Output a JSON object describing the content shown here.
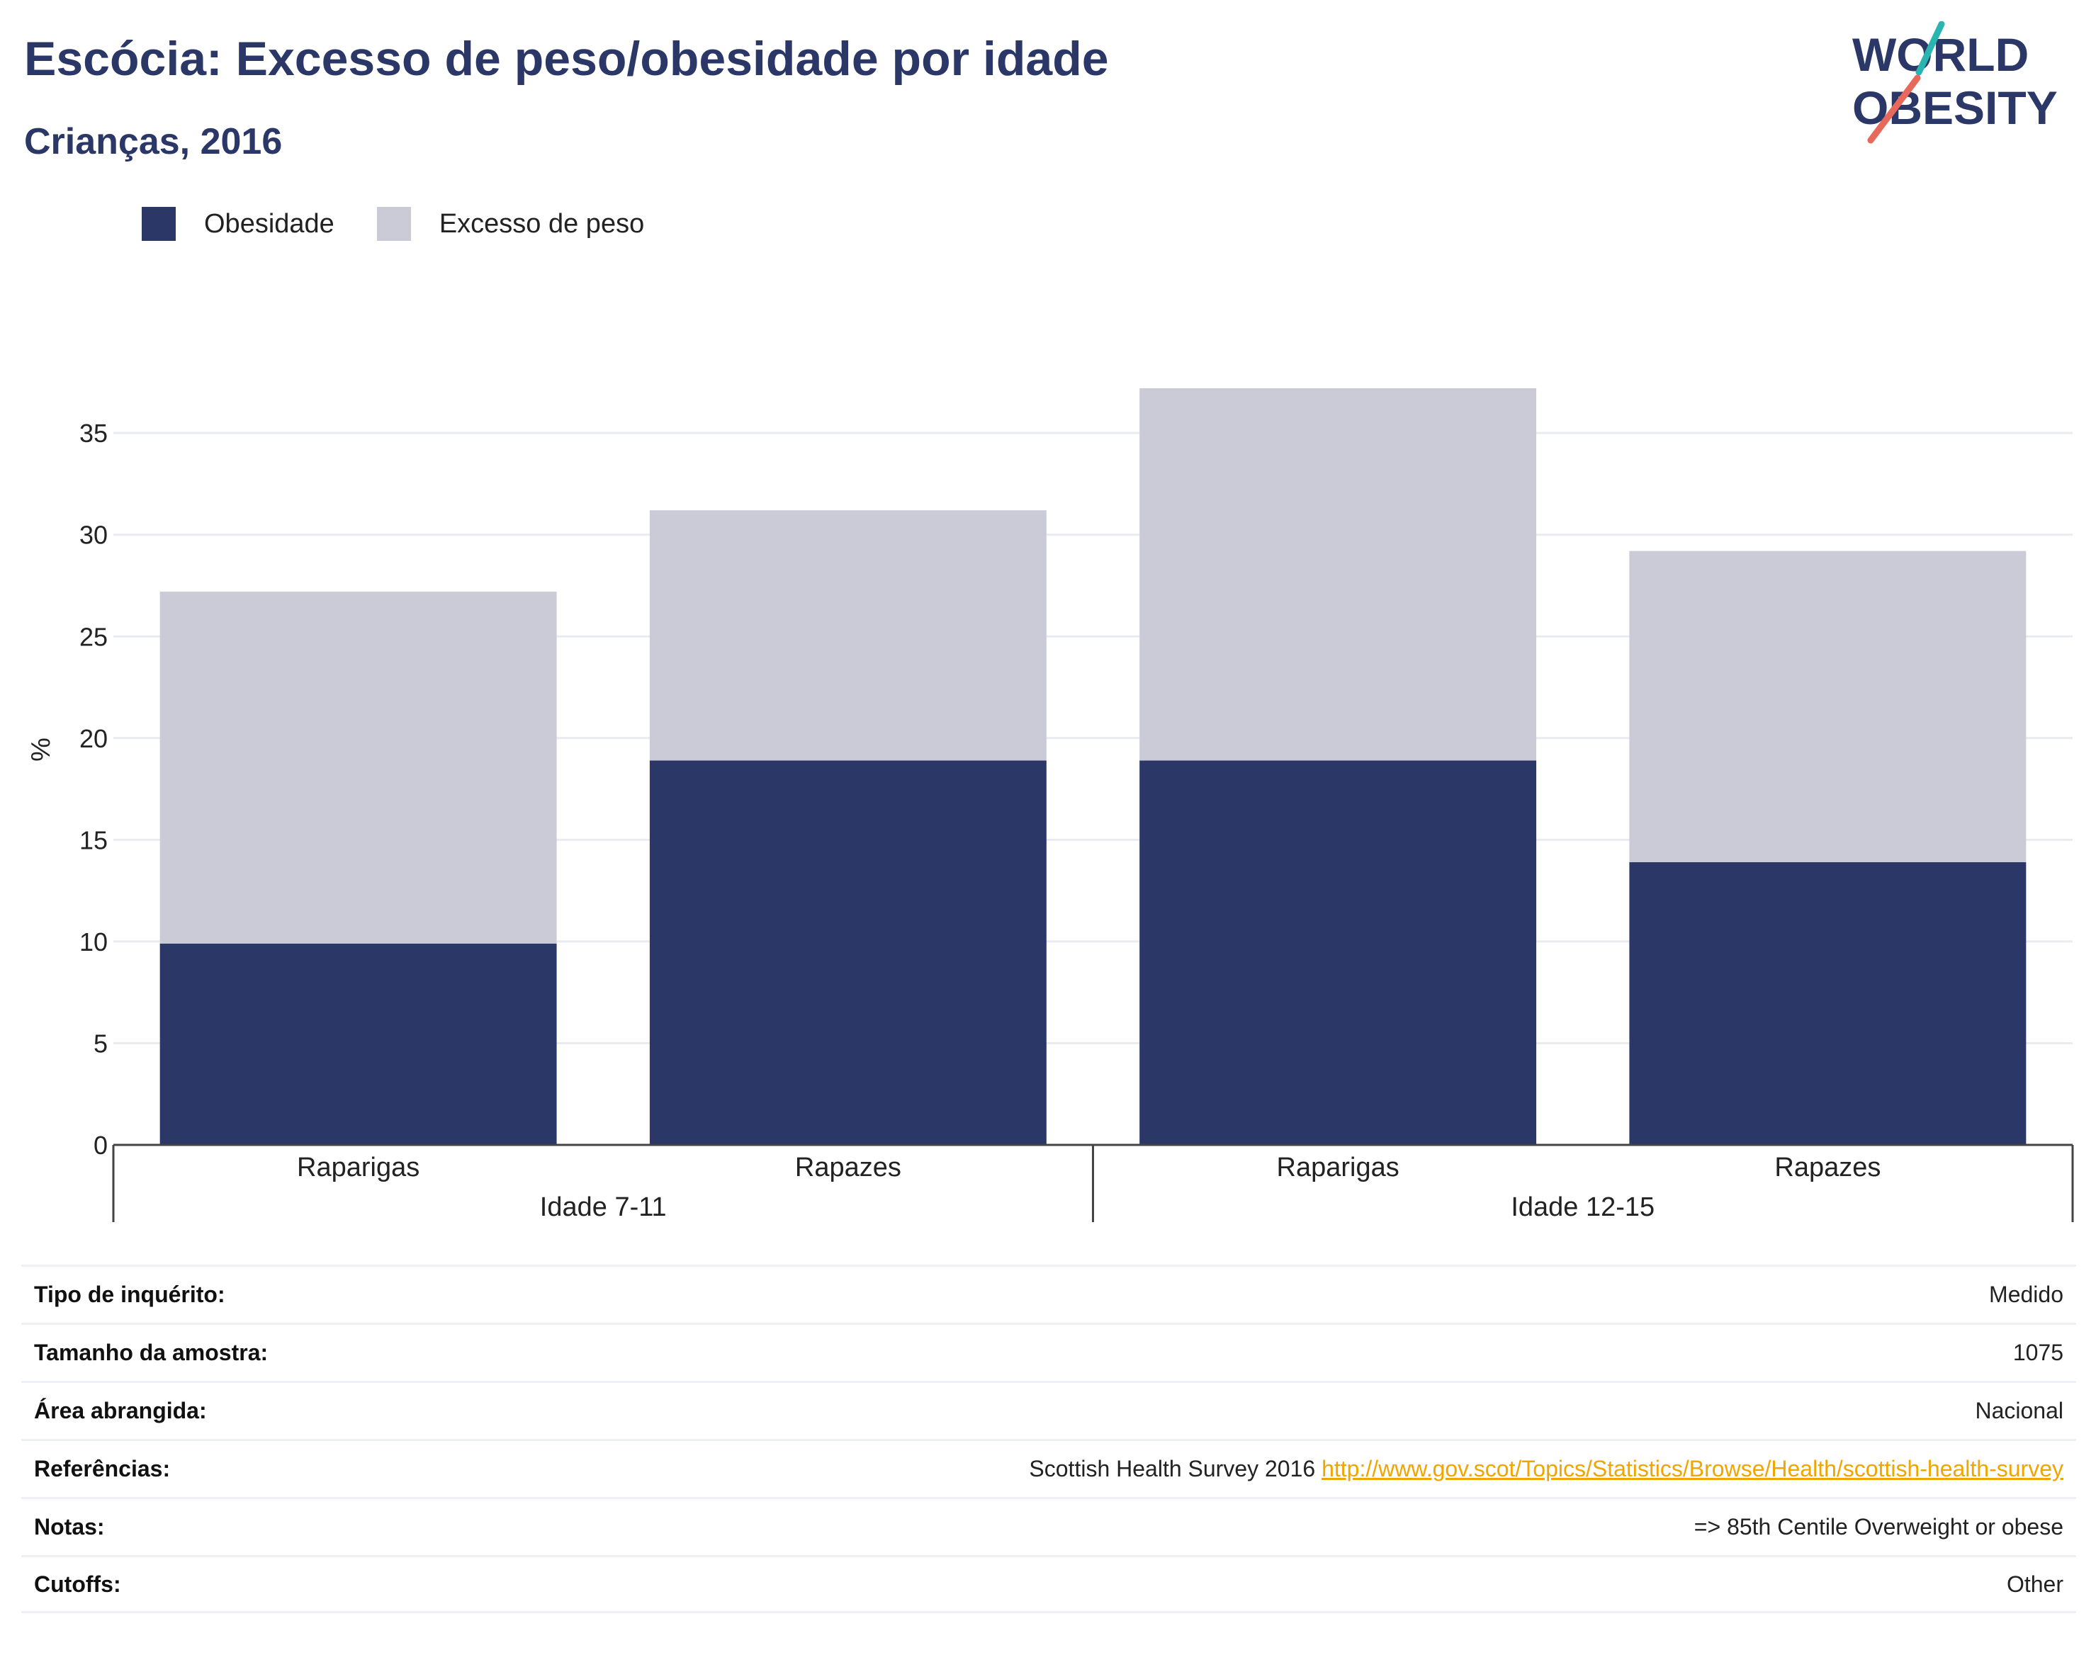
{
  "header": {
    "title": "Escócia: Excesso de peso/obesidade por idade",
    "subtitle": "Crianças, 2016"
  },
  "logo": {
    "line1": "WORLD",
    "line2": "OBESITY",
    "name": "world-obesity-logo"
  },
  "colors": {
    "obesity": "#2b3766",
    "overweight": "#cacbd7",
    "title": "#2b3766",
    "link": "#f0a500",
    "logo_teal": "#2ab5b0",
    "logo_coral": "#e8685a"
  },
  "legend": [
    {
      "label": "Obesidade",
      "color": "#2b3766"
    },
    {
      "label": "Excesso de peso",
      "color": "#cacbd7"
    }
  ],
  "chart_data": {
    "type": "bar",
    "stacked": true,
    "ylabel": "%",
    "ylim": [
      0,
      37.2
    ],
    "yticks": [
      0,
      5,
      10,
      15,
      20,
      25,
      30,
      35
    ],
    "grid": true,
    "categories": [
      "Raparigas",
      "Rapazes",
      "Raparigas",
      "Rapazes"
    ],
    "groups": [
      {
        "label": "Idade 7-11",
        "categories": [
          0,
          1
        ]
      },
      {
        "label": "Idade 12-15",
        "categories": [
          2,
          3
        ]
      }
    ],
    "series": [
      {
        "name": "Obesidade",
        "values": [
          9.9,
          18.9,
          18.9,
          13.9
        ]
      },
      {
        "name": "Excesso de peso",
        "values": [
          17.3,
          12.3,
          18.3,
          15.3
        ]
      }
    ],
    "totals": [
      27.2,
      31.2,
      37.2,
      29.2
    ]
  },
  "meta": [
    {
      "label": "Tipo de inquérito:",
      "value": "Medido"
    },
    {
      "label": "Tamanho da amostra:",
      "value": "1075"
    },
    {
      "label": "Área abrangida:",
      "value": "Nacional"
    },
    {
      "label": "Referências:",
      "value": "Scottish Health Survey 2016",
      "link": "http://www.gov.scot/Topics/Statistics/Browse/Health/scottish-health-survey"
    },
    {
      "label": "Notas:",
      "value": "=> 85th Centile Overweight or obese"
    },
    {
      "label": "Cutoffs:",
      "value": "Other"
    }
  ]
}
